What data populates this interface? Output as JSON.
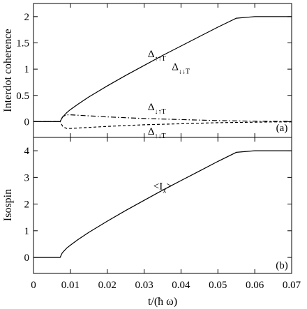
{
  "chart_data": [
    {
      "type": "line",
      "panel_label": "(a)",
      "ylabel": "Interdot coherence",
      "xlim": [
        0,
        0.07
      ],
      "ylim": [
        -0.3,
        2.25
      ],
      "yticks": [
        0,
        0.5,
        1,
        1.5,
        2
      ],
      "ytick_labels": [
        "0",
        "0.5",
        "1",
        "1.5",
        "2"
      ],
      "annotations": [
        {
          "main": "Δ",
          "sub": "↑↑T",
          "x": 0.031,
          "y": 1.23
        },
        {
          "main": "Δ",
          "sub": "↓↓T",
          "x": 0.0375,
          "y": 0.98
        },
        {
          "main": "Δ",
          "sub": "↓↑T",
          "x": 0.031,
          "y": 0.22
        },
        {
          "main": "Δ",
          "sub": "↑↓T",
          "x": 0.031,
          "y": -0.25
        }
      ],
      "series": [
        {
          "style": "solid",
          "x": [
            0,
            0.0072,
            0.0078,
            0.009,
            0.01,
            0.012,
            0.015,
            0.02,
            0.025,
            0.03,
            0.035,
            0.04,
            0.045,
            0.05,
            0.055,
            0.06,
            0.0634,
            0.07
          ],
          "y": [
            0,
            0,
            0.08,
            0.17,
            0.23,
            0.33,
            0.47,
            0.68,
            0.88,
            1.07,
            1.26,
            1.44,
            1.62,
            1.8,
            1.97,
            2.0,
            2.0,
            2.0
          ]
        },
        {
          "style": "dashdot",
          "x": [
            0,
            0.0072,
            0.008,
            0.009,
            0.01,
            0.015,
            0.02,
            0.03,
            0.04,
            0.05,
            0.06,
            0.065,
            0.07
          ],
          "y": [
            0,
            0,
            0.1,
            0.13,
            0.13,
            0.11,
            0.09,
            0.06,
            0.04,
            0.02,
            0.01,
            0.005,
            0.005
          ]
        },
        {
          "style": "dashed",
          "x": [
            0,
            0.0072,
            0.008,
            0.009,
            0.01,
            0.015,
            0.02,
            0.03,
            0.04,
            0.05,
            0.06,
            0.065,
            0.07
          ],
          "y": [
            0,
            0,
            -0.1,
            -0.13,
            -0.13,
            -0.11,
            -0.09,
            -0.06,
            -0.04,
            -0.02,
            -0.01,
            -0.005,
            -0.005
          ]
        }
      ]
    },
    {
      "type": "line",
      "panel_label": "(b)",
      "ylabel": "Isospin",
      "xlabel": "t/(ħ ω)",
      "xlim": [
        0,
        0.07
      ],
      "ylim": [
        -0.6,
        4.5
      ],
      "xticks": [
        0,
        0.01,
        0.02,
        0.03,
        0.04,
        0.05,
        0.06,
        0.07
      ],
      "xtick_labels": [
        "0",
        "0.01",
        "0.02",
        "0.03",
        "0.04",
        "0.05",
        "0.06",
        "0.07"
      ],
      "yticks": [
        0,
        1,
        2,
        3,
        4
      ],
      "ytick_labels": [
        "0",
        "1",
        "2",
        "3",
        "4"
      ],
      "annotations": [
        {
          "main": "<I",
          "sub": "x",
          "tail": ">",
          "x": 0.0325,
          "y": 2.55
        }
      ],
      "series": [
        {
          "style": "solid",
          "x": [
            0,
            0.0072,
            0.0078,
            0.009,
            0.01,
            0.012,
            0.015,
            0.02,
            0.025,
            0.03,
            0.035,
            0.04,
            0.045,
            0.05,
            0.055,
            0.06,
            0.0634,
            0.07
          ],
          "y": [
            0,
            0,
            0.17,
            0.35,
            0.46,
            0.66,
            0.94,
            1.36,
            1.76,
            2.14,
            2.52,
            2.88,
            3.24,
            3.6,
            3.94,
            4.0,
            4.0,
            4.0
          ]
        }
      ]
    }
  ]
}
